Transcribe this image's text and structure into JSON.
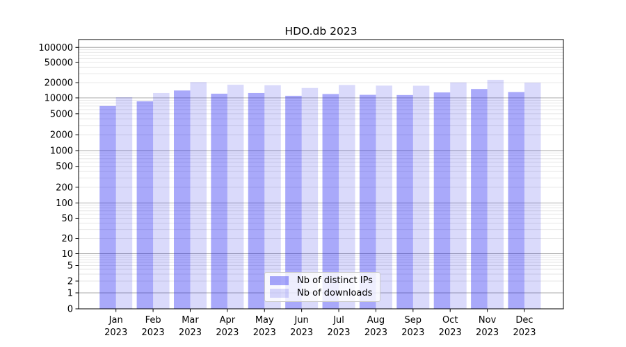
{
  "chart_data": {
    "type": "bar",
    "title": "HDO.db 2023",
    "categories": [
      "Jan",
      "Feb",
      "Mar",
      "Apr",
      "May",
      "Jun",
      "Jul",
      "Aug",
      "Sep",
      "Oct",
      "Nov",
      "Dec"
    ],
    "category_year": "2023",
    "series": [
      {
        "name": "Nb of distinct IPs",
        "color": "rgba(10,10,240,0.35)",
        "values": [
          7000,
          8600,
          14000,
          12100,
          12500,
          11000,
          11900,
          11500,
          11400,
          12800,
          15000,
          13000
        ]
      },
      {
        "name": "Nb of downloads",
        "color": "rgba(10,10,225,0.15)",
        "values": [
          10300,
          12500,
          20500,
          18200,
          17800,
          15700,
          18000,
          17500,
          17400,
          20200,
          22800,
          20000
        ]
      }
    ],
    "yscale": "symlog",
    "y_ticks": [
      100000,
      50000,
      20000,
      10000,
      5000,
      2000,
      1000,
      500,
      200,
      100,
      50,
      20,
      10,
      5,
      2,
      1,
      0
    ],
    "ylim": [
      0,
      140000
    ],
    "xlabel": "",
    "ylabel": "",
    "grid": true,
    "legend_position": "lower center",
    "colors": {
      "major_gridline": "#ababab",
      "minor_gridline": "#e6e6e6",
      "axis": "#000000",
      "background": "#ffffff"
    }
  }
}
